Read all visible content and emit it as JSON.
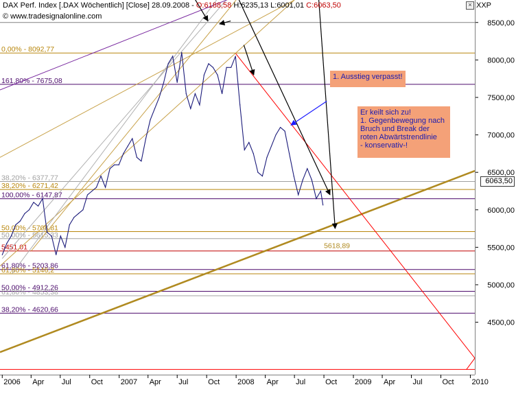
{
  "header": {
    "instrument": "DAX Perf. Index [.DAX  Wöchentlich] [Close] 28.09.2008 -",
    "open": "O:6188,58",
    "high": "H:6235,13",
    "low": "L:6001,01",
    "close": "C:6063,50",
    "source": "© www.tradesignalonline.com",
    "axis_tag": "XXP"
  },
  "annotations": {
    "missed_exit": "1. Ausstieg verpasst!",
    "wedge_text": "Er keilt sich zu!\n1. Gegenbewegung nach Bruch und Break der roten Abwärtstrendlinie\n- konservativ-!"
  },
  "colors": {
    "price": "#1a1a7a",
    "fib_gold": "#b8860b",
    "fib_purple": "#4b0a6b",
    "trend_red": "#ff0000",
    "channel_gold": "#c8a24a",
    "note_bg": "#f4a178",
    "note_text": "#1b1bb0",
    "support": "#b08a20"
  },
  "chart_data": {
    "type": "line",
    "x_range": [
      "2005-12-25",
      "2010-01-15"
    ],
    "ylim": [
      3800,
      8800
    ],
    "y_ticks": [
      4500,
      5000,
      5500,
      6000,
      6500,
      7000,
      7500,
      8000,
      8500
    ],
    "y_tick_labels": [
      "4500,00",
      "5000,00",
      "5500,00",
      "6000,00",
      "6500,00",
      "7000,00",
      "7500,00",
      "8000,00",
      "8500,00"
    ],
    "x_ticks": [
      {
        "date": "2006-01-01",
        "label": "2006"
      },
      {
        "date": "2006-04-01",
        "label": "Apr"
      },
      {
        "date": "2006-07-01",
        "label": "Jul"
      },
      {
        "date": "2006-10-01",
        "label": "Oct"
      },
      {
        "date": "2007-01-01",
        "label": "2007"
      },
      {
        "date": "2007-04-01",
        "label": "Apr"
      },
      {
        "date": "2007-07-01",
        "label": "Jul"
      },
      {
        "date": "2007-10-01",
        "label": "Oct"
      },
      {
        "date": "2008-01-01",
        "label": "2008"
      },
      {
        "date": "2008-04-01",
        "label": "Apr"
      },
      {
        "date": "2008-07-01",
        "label": "Jul"
      },
      {
        "date": "2008-10-01",
        "label": "Oct"
      },
      {
        "date": "2009-01-01",
        "label": "2009"
      },
      {
        "date": "2009-04-01",
        "label": "Apr"
      },
      {
        "date": "2009-07-01",
        "label": "Jul"
      },
      {
        "date": "2009-10-01",
        "label": "Oct"
      },
      {
        "date": "2010-01-01",
        "label": "2010"
      }
    ],
    "last_price_label": "6063,50",
    "series": [
      {
        "points": [
          [
            "2006-01-01",
            5400
          ],
          [
            "2006-01-15",
            5550
          ],
          [
            "2006-01-29",
            5650
          ],
          [
            "2006-02-12",
            5800
          ],
          [
            "2006-02-26",
            5850
          ],
          [
            "2006-03-12",
            5950
          ],
          [
            "2006-03-26",
            6000
          ],
          [
            "2006-04-09",
            6100
          ],
          [
            "2006-04-23",
            6050
          ],
          [
            "2006-05-07",
            6150
          ],
          [
            "2006-05-21",
            5700
          ],
          [
            "2006-06-04",
            5650
          ],
          [
            "2006-06-18",
            5400
          ],
          [
            "2006-07-02",
            5650
          ],
          [
            "2006-07-16",
            5500
          ],
          [
            "2006-07-30",
            5800
          ],
          [
            "2006-08-13",
            5900
          ],
          [
            "2006-08-27",
            5950
          ],
          [
            "2006-09-10",
            6000
          ],
          [
            "2006-09-24",
            6200
          ],
          [
            "2006-10-08",
            6250
          ],
          [
            "2006-10-22",
            6300
          ],
          [
            "2006-11-05",
            6450
          ],
          [
            "2006-11-19",
            6300
          ],
          [
            "2006-12-03",
            6550
          ],
          [
            "2006-12-17",
            6600
          ],
          [
            "2006-12-31",
            6600
          ],
          [
            "2007-01-14",
            6750
          ],
          [
            "2007-01-28",
            6850
          ],
          [
            "2007-02-11",
            6950
          ],
          [
            "2007-02-25",
            6700
          ],
          [
            "2007-03-11",
            6650
          ],
          [
            "2007-03-25",
            6950
          ],
          [
            "2007-04-08",
            7200
          ],
          [
            "2007-04-22",
            7350
          ],
          [
            "2007-05-06",
            7500
          ],
          [
            "2007-05-20",
            7700
          ],
          [
            "2007-06-03",
            7950
          ],
          [
            "2007-06-17",
            8050
          ],
          [
            "2007-07-01",
            7700
          ],
          [
            "2007-07-15",
            8100
          ],
          [
            "2007-07-29",
            7550
          ],
          [
            "2007-08-12",
            7350
          ],
          [
            "2007-08-26",
            7550
          ],
          [
            "2007-09-09",
            7400
          ],
          [
            "2007-09-23",
            7800
          ],
          [
            "2007-10-07",
            7950
          ],
          [
            "2007-10-21",
            7900
          ],
          [
            "2007-11-04",
            7800
          ],
          [
            "2007-11-18",
            7550
          ],
          [
            "2007-12-02",
            7900
          ],
          [
            "2007-12-16",
            7900
          ],
          [
            "2007-12-30",
            8050
          ],
          [
            "2008-01-13",
            7400
          ],
          [
            "2008-01-27",
            6800
          ],
          [
            "2008-02-10",
            6900
          ],
          [
            "2008-02-24",
            6750
          ],
          [
            "2008-03-09",
            6500
          ],
          [
            "2008-03-23",
            6450
          ],
          [
            "2008-04-06",
            6700
          ],
          [
            "2008-04-20",
            6850
          ],
          [
            "2008-05-04",
            7000
          ],
          [
            "2008-05-18",
            7100
          ],
          [
            "2008-06-01",
            7050
          ],
          [
            "2008-06-15",
            6750
          ],
          [
            "2008-06-29",
            6450
          ],
          [
            "2008-07-13",
            6200
          ],
          [
            "2008-07-27",
            6400
          ],
          [
            "2008-08-10",
            6550
          ],
          [
            "2008-08-24",
            6400
          ],
          [
            "2008-09-07",
            6150
          ],
          [
            "2008-09-21",
            6250
          ],
          [
            "2008-09-28",
            6063.5
          ]
        ]
      }
    ],
    "horizontal_lines": [
      {
        "value": 8500,
        "label": "",
        "color": "#808080"
      },
      {
        "value": 8092.77,
        "label": "0,00% - 8092,77",
        "color": "#b8860b"
      },
      {
        "value": 7675.08,
        "label": "161,80% - 7675,08",
        "color": "#4b0a6b"
      },
      {
        "value": 6377.77,
        "label": "38,20% - 6377,77",
        "color": "#a0a0a0"
      },
      {
        "value": 6271.42,
        "label": "38,20% - 6271,42",
        "color": "#b8860b"
      },
      {
        "value": 6147.87,
        "label": "100,00% - 6147,87",
        "color": "#4b0a6b"
      },
      {
        "value": 5708.81,
        "label": "50,00% - 5708,81",
        "color": "#b8860b"
      },
      {
        "value": 5615.33,
        "label": "50,00% - 5615,33",
        "color": "#a0a0a0"
      },
      {
        "value": 5451.01,
        "label": "5451,01",
        "color": "#c00000"
      },
      {
        "value": 5203.86,
        "label": "61,80% - 5203,86",
        "color": "#4b0a6b"
      },
      {
        "value": 5146.2,
        "label": "61,80% - 5146,2",
        "color": "#b8860b"
      },
      {
        "value": 4912.26,
        "label": "50,00% - 4912,26",
        "color": "#4b0a6b"
      },
      {
        "value": 4853.38,
        "label": "61,80% - 4853,38",
        "color": "#a0a0a0"
      },
      {
        "value": 4620.66,
        "label": "38,20% - 4620,66",
        "color": "#4b0a6b"
      }
    ],
    "support_label": "5618,89",
    "trend_lines": [
      {
        "role": "support",
        "from": [
          "2005-12-25",
          4100
        ],
        "to": [
          "2010-01-15",
          6520
        ],
        "color": "#b08a20",
        "width": 2.5
      },
      {
        "role": "downtrend",
        "from": [
          "2007-12-30",
          8090
        ],
        "to": [
          "2010-01-15",
          4020
        ],
        "color": "#ff0000",
        "width": 1
      },
      {
        "role": "lower-bound",
        "from": [
          "2005-12-25",
          3870
        ],
        "to": [
          "2010-01-15",
          3870
        ],
        "color": "#ff0000",
        "width": 1
      },
      {
        "role": "lower-bound-corner",
        "from": [
          "2009-12-20",
          3870
        ],
        "to": [
          "2010-01-15",
          4020
        ],
        "color": "#ff0000",
        "width": 1
      },
      {
        "role": "channel-upper",
        "from": [
          "2005-12-25",
          6700
        ],
        "to": [
          "2008-07-01",
          8800
        ],
        "color": "#c8a24a",
        "width": 1
      },
      {
        "role": "channel-lower",
        "from": [
          "2005-12-25",
          5250
        ],
        "to": [
          "2008-07-01",
          8800
        ],
        "color": "#c8a24a",
        "width": 1
      },
      {
        "role": "channel-mid",
        "from": [
          "2006-04-01",
          5450
        ],
        "to": [
          "2008-01-01",
          8800
        ],
        "color": "#c8a24a",
        "width": 1
      },
      {
        "role": "grey-fan-1",
        "from": [
          "2006-01-01",
          5350
        ],
        "to": [
          "2007-12-01",
          8800
        ],
        "color": "#b0b0b0",
        "width": 1
      },
      {
        "role": "grey-fan-2",
        "from": [
          "2006-02-01",
          5150
        ],
        "to": [
          "2007-11-01",
          8800
        ],
        "color": "#b0b0b0",
        "width": 1
      },
      {
        "role": "purple-up",
        "from": [
          "2005-12-25",
          7600
        ],
        "to": [
          "2008-01-01",
          8850
        ],
        "color": "#7a2aa0",
        "width": 1
      }
    ],
    "arrows": [
      {
        "from": [
          "2007-08-20",
          8850
        ],
        "to": [
          "2007-10-05",
          8520
        ],
        "color": "#000"
      },
      {
        "from": [
          "2007-12-15",
          8520
        ],
        "to": [
          "2007-11-10",
          8480
        ],
        "color": "#000"
      },
      {
        "from": [
          "2008-01-10",
          8800
        ],
        "to": [
          "2008-10-20",
          6200
        ],
        "color": "#000"
      },
      {
        "from": [
          "2008-01-25",
          8200
        ],
        "to": [
          "2008-02-25",
          7800
        ],
        "color": "#000"
      },
      {
        "from": [
          "2008-09-15",
          8800
        ],
        "to": [
          "2008-11-05",
          5750
        ],
        "color": "#000"
      },
      {
        "from": [
          "2008-10-10",
          7450
        ],
        "to": [
          "2008-06-20",
          7130
        ],
        "color": "#1b1bff"
      }
    ]
  }
}
